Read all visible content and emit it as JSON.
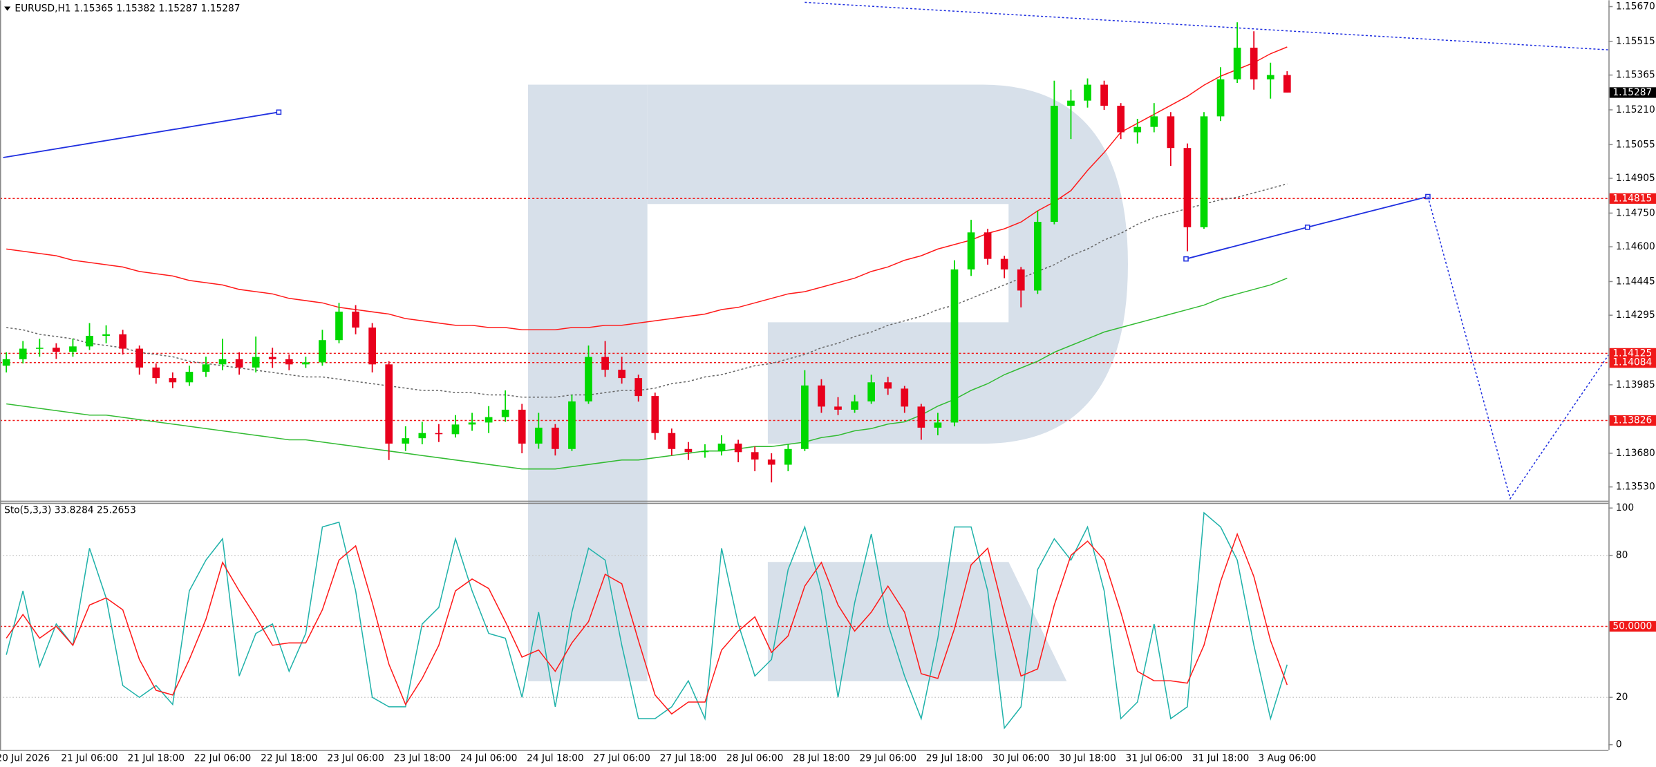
{
  "chart_data": [
    {
      "type": "candlestick",
      "title": "EURUSD,H1  1.15365 1.15382 1.15287 1.15287",
      "up_color": "#00d800",
      "down_color": "#e8001c",
      "ylim": [
        1.13478,
        1.15689
      ],
      "yticks": [
        {
          "value": 1.1567,
          "label": "1.15670"
        },
        1.15515,
        1.15365,
        {
          "value": 1.1521,
          "label": "1.15210"
        },
        1.15055,
        1.14905,
        {
          "value": 1.1475,
          "label": "1.14750"
        },
        {
          "value": 1.146,
          "label": "1.14600"
        },
        1.14445,
        1.14295,
        1.13985,
        {
          "value": 1.1368,
          "label": "1.13680"
        },
        {
          "value": 1.1353,
          "label": "1.13530"
        }
      ],
      "levels": [
        1.14815,
        1.14125,
        1.14084,
        1.13826
      ],
      "level_color": "#f01818",
      "current_price": 1.15287,
      "open": [
        1.1407,
        1.14099,
        1.14146,
        1.1415,
        1.14132,
        1.14156,
        1.14203,
        1.1421,
        1.14146,
        1.14062,
        1.14015,
        1.13996,
        1.14043,
        1.14076,
        1.14099,
        1.14062,
        1.14109,
        1.14099,
        1.14076,
        1.14085,
        1.14184,
        1.14311,
        1.1424,
        1.14076,
        1.13723,
        1.13747,
        1.1377,
        1.13765,
        1.13808,
        1.13817,
        1.13841,
        1.13874,
        1.13723,
        1.13794,
        1.13699,
        1.13911,
        1.14109,
        1.14052,
        1.14015,
        1.13935,
        1.1377,
        1.13699,
        1.13685,
        1.1369,
        1.13723,
        1.13685,
        1.13652,
        1.13629,
        1.13699,
        1.13982,
        1.13888,
        1.13874,
        1.13911,
        1.13996,
        1.13968,
        1.13888,
        1.13794,
        1.13817,
        1.14499,
        1.14664,
        1.14546,
        1.14499,
        1.14405,
        1.14711,
        1.15228,
        1.15251,
        1.15322,
        1.15228,
        1.1511,
        1.15134,
        1.15181,
        1.1504,
        1.14687,
        1.15181,
        1.15346,
        1.15487,
        1.15346,
        1.15365
      ],
      "high": [
        1.1413,
        1.1418,
        1.1419,
        1.1417,
        1.1419,
        1.1426,
        1.1425,
        1.1423,
        1.1416,
        1.1408,
        1.1404,
        1.1407,
        1.1411,
        1.1419,
        1.1413,
        1.142,
        1.1415,
        1.1412,
        1.1411,
        1.1423,
        1.1435,
        1.1434,
        1.1426,
        1.1409,
        1.138,
        1.1382,
        1.1381,
        1.1385,
        1.1386,
        1.1389,
        1.1396,
        1.139,
        1.1386,
        1.1381,
        1.1394,
        1.1416,
        1.1418,
        1.1411,
        1.1403,
        1.1395,
        1.1379,
        1.1373,
        1.1372,
        1.1376,
        1.1374,
        1.1371,
        1.1368,
        1.1372,
        1.1405,
        1.1401,
        1.1393,
        1.1394,
        1.1403,
        1.1402,
        1.1398,
        1.139,
        1.1386,
        1.1454,
        1.1472,
        1.1468,
        1.1456,
        1.1451,
        1.1476,
        1.1534,
        1.153,
        1.1535,
        1.1534,
        1.1524,
        1.1517,
        1.1524,
        1.152,
        1.1506,
        1.152,
        1.154,
        1.156,
        1.1556,
        1.1542,
        1.15382
      ],
      "low": [
        1.1404,
        1.1408,
        1.1411,
        1.141,
        1.1411,
        1.1414,
        1.1417,
        1.1412,
        1.1403,
        1.1399,
        1.1397,
        1.1398,
        1.1402,
        1.1405,
        1.1403,
        1.1404,
        1.1406,
        1.1405,
        1.1406,
        1.1407,
        1.1417,
        1.1421,
        1.1404,
        1.1365,
        1.1369,
        1.1372,
        1.1373,
        1.1375,
        1.1378,
        1.1377,
        1.1382,
        1.1368,
        1.137,
        1.1367,
        1.1369,
        1.139,
        1.1402,
        1.1399,
        1.1391,
        1.1374,
        1.1367,
        1.1365,
        1.1366,
        1.1367,
        1.1364,
        1.136,
        1.1355,
        1.136,
        1.1369,
        1.1386,
        1.1385,
        1.1386,
        1.139,
        1.1394,
        1.1386,
        1.1374,
        1.1376,
        1.138,
        1.1447,
        1.1452,
        1.1446,
        1.1433,
        1.1439,
        1.147,
        1.1508,
        1.1522,
        1.1521,
        1.1508,
        1.1506,
        1.1511,
        1.1496,
        1.1458,
        1.1468,
        1.1516,
        1.1533,
        1.153,
        1.1526,
        1.15287
      ],
      "close": [
        1.14099,
        1.14146,
        1.1415,
        1.14132,
        1.14156,
        1.14203,
        1.1421,
        1.14146,
        1.14062,
        1.14015,
        1.13996,
        1.14043,
        1.14076,
        1.14099,
        1.14062,
        1.14109,
        1.14099,
        1.14076,
        1.14085,
        1.14184,
        1.14311,
        1.1424,
        1.14076,
        1.13723,
        1.13747,
        1.1377,
        1.13765,
        1.13808,
        1.13817,
        1.13841,
        1.13874,
        1.13723,
        1.13794,
        1.13699,
        1.13911,
        1.14109,
        1.14052,
        1.14015,
        1.13935,
        1.1377,
        1.13699,
        1.13685,
        1.1369,
        1.13723,
        1.13685,
        1.13652,
        1.13629,
        1.13699,
        1.13982,
        1.13888,
        1.13874,
        1.13911,
        1.13996,
        1.13968,
        1.13888,
        1.13794,
        1.13817,
        1.14499,
        1.14664,
        1.14546,
        1.14499,
        1.14405,
        1.14711,
        1.15228,
        1.15251,
        1.15322,
        1.15228,
        1.1511,
        1.15134,
        1.15181,
        1.1504,
        1.14687,
        1.15181,
        1.15346,
        1.15487,
        1.15346,
        1.15365,
        1.15287
      ],
      "lines": [
        {
          "color": "#ff1a1a",
          "style": "solid",
          "values": [
            1.1459,
            1.1458,
            1.1457,
            1.1456,
            1.1454,
            1.1453,
            1.1452,
            1.1451,
            1.1449,
            1.1448,
            1.1447,
            1.1445,
            1.1444,
            1.1443,
            1.1441,
            1.144,
            1.1439,
            1.1437,
            1.1436,
            1.1435,
            1.1433,
            1.1432,
            1.1431,
            1.143,
            1.1428,
            1.1427,
            1.1426,
            1.1425,
            1.1425,
            1.1424,
            1.1424,
            1.1423,
            1.1423,
            1.1423,
            1.1424,
            1.1424,
            1.1425,
            1.1425,
            1.1426,
            1.1427,
            1.1428,
            1.1429,
            1.143,
            1.1432,
            1.1433,
            1.1435,
            1.1437,
            1.1439,
            1.144,
            1.1442,
            1.1444,
            1.1446,
            1.1449,
            1.1451,
            1.1454,
            1.1456,
            1.1459,
            1.1461,
            1.1463,
            1.1466,
            1.1468,
            1.1471,
            1.1476,
            1.148,
            1.1485,
            1.1494,
            1.1502,
            1.1511,
            1.1515,
            1.1519,
            1.1523,
            1.1527,
            1.1532,
            1.1536,
            1.1539,
            1.1542,
            1.1546,
            1.1549
          ]
        },
        {
          "color": "#33bb33",
          "style": "solid",
          "values": [
            1.139,
            1.1389,
            1.1388,
            1.1387,
            1.1386,
            1.1385,
            1.1385,
            1.1384,
            1.1383,
            1.1382,
            1.1381,
            1.138,
            1.1379,
            1.1378,
            1.1377,
            1.1376,
            1.1375,
            1.1374,
            1.1374,
            1.1373,
            1.1372,
            1.1371,
            1.137,
            1.1369,
            1.1368,
            1.1367,
            1.1366,
            1.1365,
            1.1364,
            1.1363,
            1.1362,
            1.1361,
            1.1361,
            1.1361,
            1.1362,
            1.1363,
            1.1364,
            1.1365,
            1.1365,
            1.1366,
            1.1367,
            1.1368,
            1.1369,
            1.1369,
            1.137,
            1.1371,
            1.1371,
            1.1372,
            1.1373,
            1.1375,
            1.1376,
            1.1378,
            1.1379,
            1.1381,
            1.1382,
            1.1385,
            1.1389,
            1.1392,
            1.1396,
            1.1399,
            1.1403,
            1.1406,
            1.1409,
            1.1413,
            1.1416,
            1.1419,
            1.1422,
            1.1424,
            1.1426,
            1.1428,
            1.143,
            1.1432,
            1.1434,
            1.1437,
            1.1439,
            1.1441,
            1.1443,
            1.1446
          ]
        },
        {
          "color": "#666666",
          "style": "dotted",
          "values": [
            1.1424,
            1.1423,
            1.1421,
            1.142,
            1.1419,
            1.1417,
            1.1416,
            1.1415,
            1.1413,
            1.1412,
            1.1411,
            1.1409,
            1.1408,
            1.1407,
            1.1406,
            1.1405,
            1.1404,
            1.1403,
            1.1402,
            1.1402,
            1.1401,
            1.14,
            1.1399,
            1.1398,
            1.1397,
            1.1396,
            1.1396,
            1.1395,
            1.1395,
            1.1394,
            1.1394,
            1.1393,
            1.1393,
            1.1393,
            1.1394,
            1.1394,
            1.1395,
            1.1396,
            1.1396,
            1.1397,
            1.1399,
            1.14,
            1.1402,
            1.1403,
            1.1405,
            1.1407,
            1.1408,
            1.141,
            1.1412,
            1.1415,
            1.1417,
            1.142,
            1.1422,
            1.1425,
            1.1427,
            1.1429,
            1.1432,
            1.1434,
            1.1437,
            1.144,
            1.1443,
            1.1446,
            1.1449,
            1.1452,
            1.1456,
            1.1459,
            1.1463,
            1.1466,
            1.147,
            1.1473,
            1.1475,
            1.1477,
            1.1479,
            1.1481,
            1.1482,
            1.1484,
            1.1486,
            1.1488
          ]
        }
      ]
    },
    {
      "type": "line",
      "title": "Sto(5,3,3) 33.8284 25.2653",
      "ylim": [
        -2.2,
        102.2
      ],
      "yticks": [
        100,
        80,
        20,
        0
      ],
      "levels": [
        {
          "value": 50,
          "label": "50.0000"
        }
      ],
      "level_color": "#f01818",
      "categories": [
        null,
        "20 Jul 2026",
        null,
        null,
        null,
        "21 Jul 06:00",
        null,
        null,
        null,
        "21 Jul 18:00",
        null,
        null,
        null,
        "22 Jul 06:00",
        null,
        null,
        null,
        "22 Jul 18:00",
        null,
        null,
        null,
        "23 Jul 06:00",
        null,
        null,
        null,
        "23 Jul 18:00",
        null,
        null,
        null,
        "24 Jul 06:00",
        null,
        null,
        null,
        "24 Jul 18:00",
        null,
        null,
        null,
        "27 Jul 06:00",
        null,
        null,
        null,
        "27 Jul 18:00",
        null,
        null,
        null,
        "28 Jul 06:00",
        null,
        null,
        null,
        "28 Jul 18:00",
        null,
        null,
        null,
        "29 Jul 06:00",
        null,
        null,
        null,
        "29 Jul 18:00",
        null,
        null,
        null,
        "30 Jul 06:00",
        null,
        null,
        null,
        "30 Jul 18:00",
        null,
        null,
        null,
        "31 Jul 06:00",
        null,
        null,
        null,
        "31 Jul 18:00",
        null,
        null,
        null,
        "3 Aug 06:00"
      ],
      "series": [
        {
          "color": "#20b2aa",
          "values": [
            38,
            65,
            33,
            51,
            42,
            83,
            62,
            25,
            20,
            25,
            17,
            65,
            78,
            87,
            29,
            47,
            51,
            31,
            47,
            92,
            94,
            65,
            20,
            16,
            16,
            51,
            58,
            87,
            65,
            47,
            45,
            20,
            56,
            16,
            56,
            83,
            78,
            42,
            11,
            11,
            16,
            27,
            11,
            83,
            51,
            29,
            36,
            74,
            92,
            65,
            20,
            60,
            89,
            51,
            29,
            11,
            45,
            92,
            92,
            65,
            7,
            16,
            74,
            87,
            78,
            92,
            65,
            11,
            18,
            51,
            11,
            16,
            98,
            92,
            78,
            42,
            11,
            33.8284
          ]
        },
        {
          "color": "#ff1a1a",
          "values": [
            45,
            55,
            45,
            50,
            42,
            59,
            62,
            57,
            36,
            23,
            21,
            36,
            53,
            77,
            65,
            54,
            42,
            43,
            43,
            57,
            78,
            84,
            60,
            34,
            17,
            28,
            42,
            65,
            70,
            66,
            52,
            37,
            40,
            31,
            43,
            52,
            72,
            68,
            44,
            21,
            13,
            18,
            18,
            40,
            48,
            54,
            39,
            46,
            67,
            77,
            59,
            48,
            56,
            67,
            56,
            30,
            28,
            49,
            76,
            83,
            55,
            29,
            32,
            59,
            80,
            86,
            78,
            56,
            31,
            27,
            27,
            26,
            42,
            69,
            89,
            71,
            44,
            25.2653
          ]
        }
      ]
    }
  ]
}
